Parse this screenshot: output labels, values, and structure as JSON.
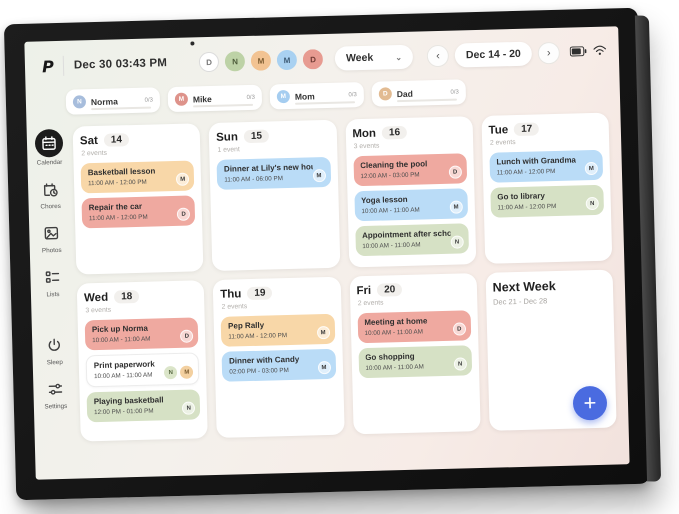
{
  "device": {
    "brand_logo": "P"
  },
  "header": {
    "datetime": "Dec 30 03:43 PM",
    "avatars": [
      {
        "initial": "D",
        "bg": "#ffffff",
        "fg": "#777777",
        "border": "#dcdcdc"
      },
      {
        "initial": "N",
        "bg": "#bdd2a6",
        "fg": "#4d5c3a",
        "border": "transparent"
      },
      {
        "initial": "M",
        "bg": "#f2c392",
        "fg": "#7a5a2e",
        "border": "transparent"
      },
      {
        "initial": "M",
        "bg": "#a9d1f1",
        "fg": "#3c5a74",
        "border": "transparent"
      },
      {
        "initial": "D",
        "bg": "#e79b91",
        "fg": "#6e3a33",
        "border": "transparent"
      }
    ],
    "view_label": "Week",
    "caret": "⌄",
    "prev_arrow": "‹",
    "next_arrow": "›",
    "week_range": "Dec 14 - 20"
  },
  "filters": [
    {
      "name": "Norma",
      "initial": "N",
      "bg": "#a7bddc",
      "count": "0/3"
    },
    {
      "name": "Mike",
      "initial": "M",
      "bg": "#de938b",
      "count": "0/3"
    },
    {
      "name": "Mom",
      "initial": "M",
      "bg": "#a5cdf0",
      "count": "0/3"
    },
    {
      "name": "Dad",
      "initial": "D",
      "bg": "#e2bb92",
      "count": "0/3"
    }
  ],
  "sidebar": [
    {
      "label": "Calendar",
      "icon": "calendar-icon",
      "active": true,
      "group": "top"
    },
    {
      "label": "Chores",
      "icon": "chores-icon",
      "active": false,
      "group": "top"
    },
    {
      "label": "Photos",
      "icon": "photos-icon",
      "active": false,
      "group": "top"
    },
    {
      "label": "Lists",
      "icon": "lists-icon",
      "active": false,
      "group": "top"
    },
    {
      "label": "Sleep",
      "icon": "sleep-icon",
      "active": false,
      "group": "bottom"
    },
    {
      "label": "Settings",
      "icon": "settings-icon",
      "active": false,
      "group": "bottom"
    }
  ],
  "week": {
    "days": [
      {
        "name": "Sat",
        "num": "14",
        "count": "2 events",
        "events": [
          {
            "title": "Basketball lesson",
            "time": "11:00 AM - 12:00 PM",
            "color": "orange",
            "badges": [
              "M"
            ]
          },
          {
            "title": "Repair the car",
            "time": "11:00 AM - 12:00 PM",
            "color": "red",
            "badges": [
              "D"
            ]
          }
        ]
      },
      {
        "name": "Sun",
        "num": "15",
        "count": "1 event",
        "events": [
          {
            "title": "Dinner at Lily's new house",
            "time": "11:00 AM - 06:00 PM",
            "color": "blue",
            "badges": [
              "M"
            ]
          }
        ]
      },
      {
        "name": "Mon",
        "num": "16",
        "count": "3 events",
        "events": [
          {
            "title": "Cleaning the pool",
            "time": "12:00 AM - 03:00 PM",
            "color": "red",
            "badges": [
              "D"
            ]
          },
          {
            "title": "Yoga lesson",
            "time": "10:00 AM - 11:00 AM",
            "color": "blue",
            "badges": [
              "M"
            ]
          },
          {
            "title": "Appointment after school",
            "time": "10:00 AM - 11:00 AM",
            "color": "green",
            "badges": [
              "N"
            ]
          }
        ]
      },
      {
        "name": "Tue",
        "num": "17",
        "count": "2 events",
        "events": [
          {
            "title": "Lunch with Grandma",
            "time": "11:00 AM - 12:00 PM",
            "color": "blue",
            "badges": [
              "M"
            ]
          },
          {
            "title": "Go to library",
            "time": "11:00 AM - 12:00 PM",
            "color": "green",
            "badges": [
              "N"
            ]
          }
        ]
      },
      {
        "name": "Wed",
        "num": "18",
        "count": "3 events",
        "events": [
          {
            "title": "Pick up Norma",
            "time": "10:00 AM - 11:00 AM",
            "color": "red",
            "badges": [
              "D"
            ]
          },
          {
            "title": "Print paperwork",
            "time": "10:00 AM - 11:00 AM",
            "color": "white",
            "badges": [
              "N",
              "M"
            ]
          },
          {
            "title": "Playing basketball",
            "time": "12:00 PM - 01:00 PM",
            "color": "green",
            "badges": [
              "N"
            ]
          }
        ]
      },
      {
        "name": "Thu",
        "num": "19",
        "count": "2 events",
        "events": [
          {
            "title": "Pep Rally",
            "time": "11:00 AM - 12:00 PM",
            "color": "orange",
            "badges": [
              "M"
            ]
          },
          {
            "title": "Dinner with Candy",
            "time": "02:00 PM - 03:00 PM",
            "color": "blue",
            "badges": [
              "M"
            ]
          }
        ]
      },
      {
        "name": "Fri",
        "num": "20",
        "count": "2 events",
        "events": [
          {
            "title": "Meeting at home",
            "time": "10:00 AM - 11:00 AM",
            "color": "red",
            "badges": [
              "D"
            ]
          },
          {
            "title": "Go shopping",
            "time": "10:00 AM - 11:00 AM",
            "color": "green",
            "badges": [
              "N"
            ]
          }
        ]
      }
    ],
    "next_week": {
      "title": "Next Week",
      "range": "Dec 21 - Dec 28"
    }
  },
  "fab": {
    "label": "+",
    "color": "#4a6be0"
  },
  "colors": {
    "event_orange": "#f8d7a8",
    "event_red": "#efa9a0",
    "event_blue": "#badcf7",
    "event_green": "#d6e1c5",
    "event_white": "#ffffff",
    "accent_blue": "#4a6be0"
  }
}
